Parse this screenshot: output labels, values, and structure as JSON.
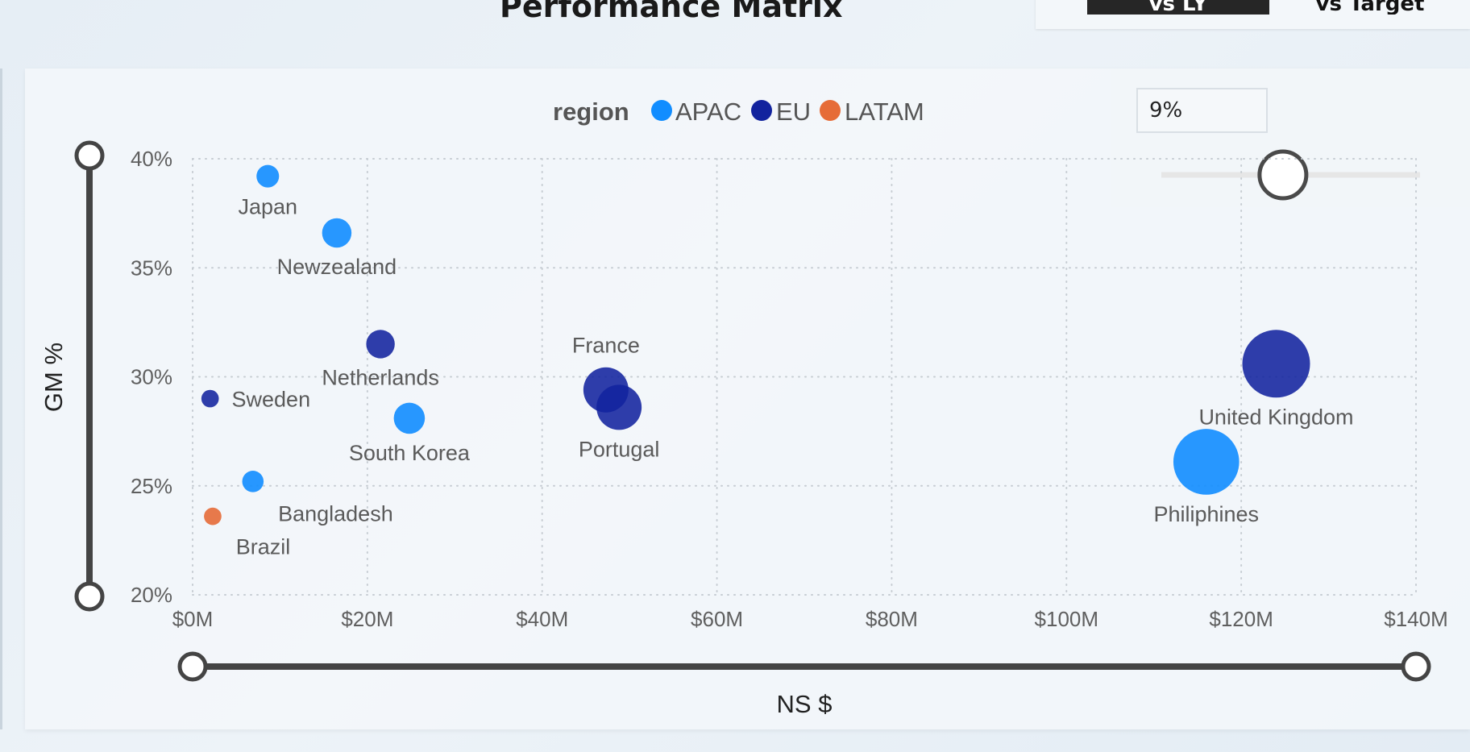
{
  "page": {
    "title": "Performance Matrix",
    "tabs": [
      {
        "label": "vs LY",
        "active": true
      },
      {
        "label": "vs Target",
        "active": false
      }
    ]
  },
  "parameter": {
    "value": "9%",
    "slider_fraction": 0.47
  },
  "colors": {
    "APAC": "#118dff",
    "EU": "#12239e",
    "LATAM": "#e66c37"
  },
  "chart_data": {
    "type": "scatter",
    "title": "",
    "xlabel": "NS $",
    "ylabel": "GM %",
    "legend": {
      "title": "region",
      "entries": [
        "APAC",
        "EU",
        "LATAM"
      ],
      "placement": "top-center"
    },
    "xlim": [
      0,
      140
    ],
    "ylim": [
      20,
      40
    ],
    "x_ticks": [
      0,
      20,
      40,
      60,
      80,
      100,
      120,
      140
    ],
    "x_tick_labels": [
      "$0M",
      "$20M",
      "$40M",
      "$60M",
      "$80M",
      "$100M",
      "$120M",
      "$140M"
    ],
    "y_ticks": [
      20,
      25,
      30,
      35,
      40
    ],
    "y_tick_labels": [
      "20%",
      "25%",
      "30%",
      "35%",
      "40%"
    ],
    "grid": true,
    "points": [
      {
        "label": "Japan",
        "region": "APAC",
        "x": 8.6,
        "y": 39.2,
        "size": 1.0,
        "label_pos": "below"
      },
      {
        "label": "Newzealand",
        "region": "APAC",
        "x": 16.5,
        "y": 36.6,
        "size": 1.7,
        "label_pos": "below"
      },
      {
        "label": "Netherlands",
        "region": "EU",
        "x": 21.5,
        "y": 31.5,
        "size": 1.6,
        "label_pos": "below"
      },
      {
        "label": "Sweden",
        "region": "EU",
        "x": 2.0,
        "y": 29.0,
        "size": 0.6,
        "label_pos": "right"
      },
      {
        "label": "South Korea",
        "region": "APAC",
        "x": 24.8,
        "y": 28.1,
        "size": 1.9,
        "label_pos": "below"
      },
      {
        "label": "Bangladesh",
        "region": "APAC",
        "x": 6.9,
        "y": 25.2,
        "size": 0.9,
        "label_pos": "below-right"
      },
      {
        "label": "Brazil",
        "region": "LATAM",
        "x": 2.3,
        "y": 23.6,
        "size": 0.6,
        "label_pos": "below-right"
      },
      {
        "label": "France",
        "region": "EU",
        "x": 47.3,
        "y": 29.4,
        "size": 4.0,
        "label_pos": "above"
      },
      {
        "label": "Portugal",
        "region": "EU",
        "x": 48.8,
        "y": 28.6,
        "size": 4.0,
        "label_pos": "below"
      },
      {
        "label": "United Kingdom",
        "region": "EU",
        "x": 124.0,
        "y": 30.6,
        "size": 9.0,
        "label_pos": "below"
      },
      {
        "label": "Philiphines",
        "region": "APAC",
        "x": 116.0,
        "y": 26.1,
        "size": 8.5,
        "label_pos": "below"
      }
    ]
  }
}
